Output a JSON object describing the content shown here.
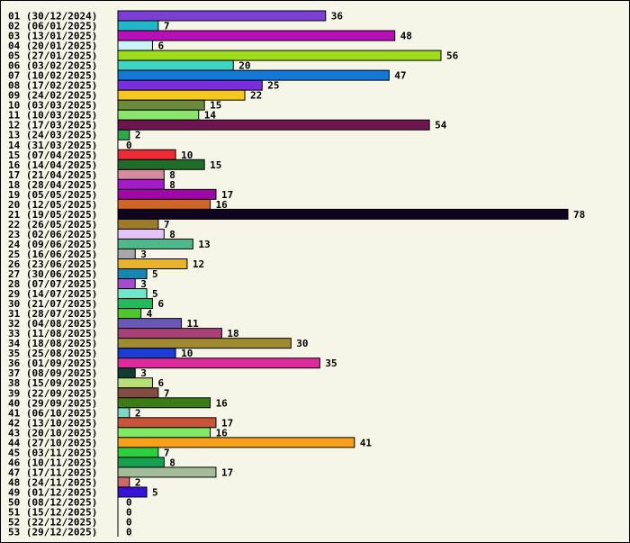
{
  "chart_data": {
    "type": "bar",
    "orientation": "horizontal",
    "title": "",
    "xlabel": "",
    "ylabel": "",
    "grid": false,
    "legend": "none",
    "background_color": "#f5f5e8",
    "categories": [
      "01 (30/12/2024)",
      "02 (06/01/2025)",
      "03 (13/01/2025)",
      "04 (20/01/2025)",
      "05 (27/01/2025)",
      "06 (03/02/2025)",
      "07 (10/02/2025)",
      "08 (17/02/2025)",
      "09 (24/02/2025)",
      "10 (03/03/2025)",
      "11 (10/03/2025)",
      "12 (17/03/2025)",
      "13 (24/03/2025)",
      "14 (31/03/2025)",
      "15 (07/04/2025)",
      "16 (14/04/2025)",
      "17 (21/04/2025)",
      "18 (28/04/2025)",
      "19 (05/05/2025)",
      "20 (12/05/2025)",
      "21 (19/05/2025)",
      "22 (26/05/2025)",
      "23 (02/06/2025)",
      "24 (09/06/2025)",
      "25 (16/06/2025)",
      "26 (23/06/2025)",
      "27 (30/06/2025)",
      "28 (07/07/2025)",
      "29 (14/07/2025)",
      "30 (21/07/2025)",
      "31 (28/07/2025)",
      "32 (04/08/2025)",
      "33 (11/08/2025)",
      "34 (18/08/2025)",
      "35 (25/08/2025)",
      "36 (01/09/2025)",
      "37 (08/09/2025)",
      "38 (15/09/2025)",
      "39 (22/09/2025)",
      "40 (29/09/2025)",
      "41 (06/10/2025)",
      "42 (13/10/2025)",
      "43 (20/10/2025)",
      "44 (27/10/2025)",
      "45 (03/11/2025)",
      "46 (10/11/2025)",
      "47 (17/11/2025)",
      "48 (24/11/2025)",
      "49 (01/12/2025)",
      "50 (08/12/2025)",
      "51 (15/12/2025)",
      "52 (22/12/2025)",
      "53 (29/12/2025)"
    ],
    "values": [
      36,
      7,
      48,
      6,
      56,
      20,
      47,
      25,
      22,
      15,
      14,
      54,
      2,
      0,
      10,
      15,
      8,
      8,
      17,
      16,
      78,
      7,
      8,
      13,
      3,
      12,
      5,
      3,
      5,
      6,
      4,
      11,
      18,
      30,
      10,
      35,
      3,
      6,
      7,
      16,
      2,
      17,
      16,
      41,
      7,
      8,
      17,
      2,
      5,
      0,
      0,
      0,
      0
    ],
    "colors": [
      "#7b3fd6",
      "#1fb8c4",
      "#b80fb8",
      "#c8f4f8",
      "#9fdc1c",
      "#3fd6c4",
      "#1478d6",
      "#7a2ee0",
      "#f4c81c",
      "#6a8a3c",
      "#8ce46c",
      "#6e1450",
      "#2fa84c",
      "#ffffff",
      "#ee2a36",
      "#1e6e2a",
      "#d88aa0",
      "#a41cc8",
      "#a006a8",
      "#d06426",
      "#0f0520",
      "#9c7c2a",
      "#e4c4f8",
      "#4eb88a",
      "#a8a8a8",
      "#e8b42e",
      "#1488b0",
      "#a44cd0",
      "#6ee8c8",
      "#26b85c",
      "#4cc82c",
      "#6a58b8",
      "#aa4078",
      "#a08c30",
      "#1c3cd8",
      "#dc2c9c",
      "#123c32",
      "#b8e078",
      "#844c40",
      "#3c7c16",
      "#78d8c4",
      "#c8543a",
      "#80ea64",
      "#f8a01c",
      "#2cd03e",
      "#16a050",
      "#a4bc98",
      "#cc686a",
      "#3810d8",
      "#cccccc",
      "#cccccc",
      "#cccccc",
      "#cccccc"
    ]
  }
}
